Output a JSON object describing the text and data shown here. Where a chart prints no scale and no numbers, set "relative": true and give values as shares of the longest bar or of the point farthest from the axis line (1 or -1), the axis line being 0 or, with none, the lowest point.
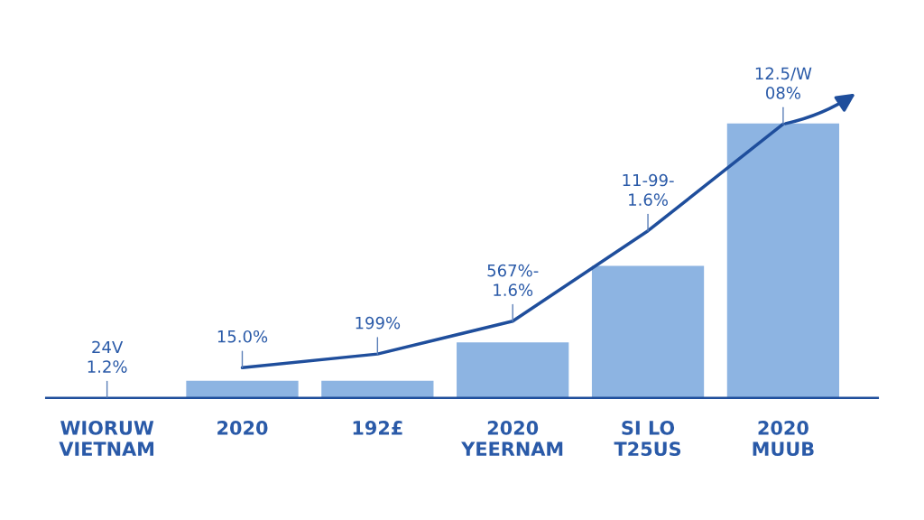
{
  "chart_data": {
    "type": "bar",
    "relative": true,
    "categories": [
      "WIORUW\nVIETNAM",
      "2020",
      "192£",
      "2020\nYEERNAM",
      "SI LO\nT25US",
      "2020\nMUUB"
    ],
    "series": [
      {
        "color": "#8db4e2",
        "values": [
          null,
          0.06,
          0.06,
          0.2,
          0.48,
          1
        ]
      },
      {
        "type": "line",
        "color": "#1f4e9c",
        "values": [
          null,
          0.11,
          0.16,
          0.28,
          0.61,
          1.0
        ]
      }
    ],
    "annotations": [
      "24V\n1.2%",
      "15.0%",
      "199%",
      "567%-\n1.6%",
      "11-99-\n1.6%",
      "12.5/W\n08%"
    ],
    "legend": false,
    "grid": false
  }
}
